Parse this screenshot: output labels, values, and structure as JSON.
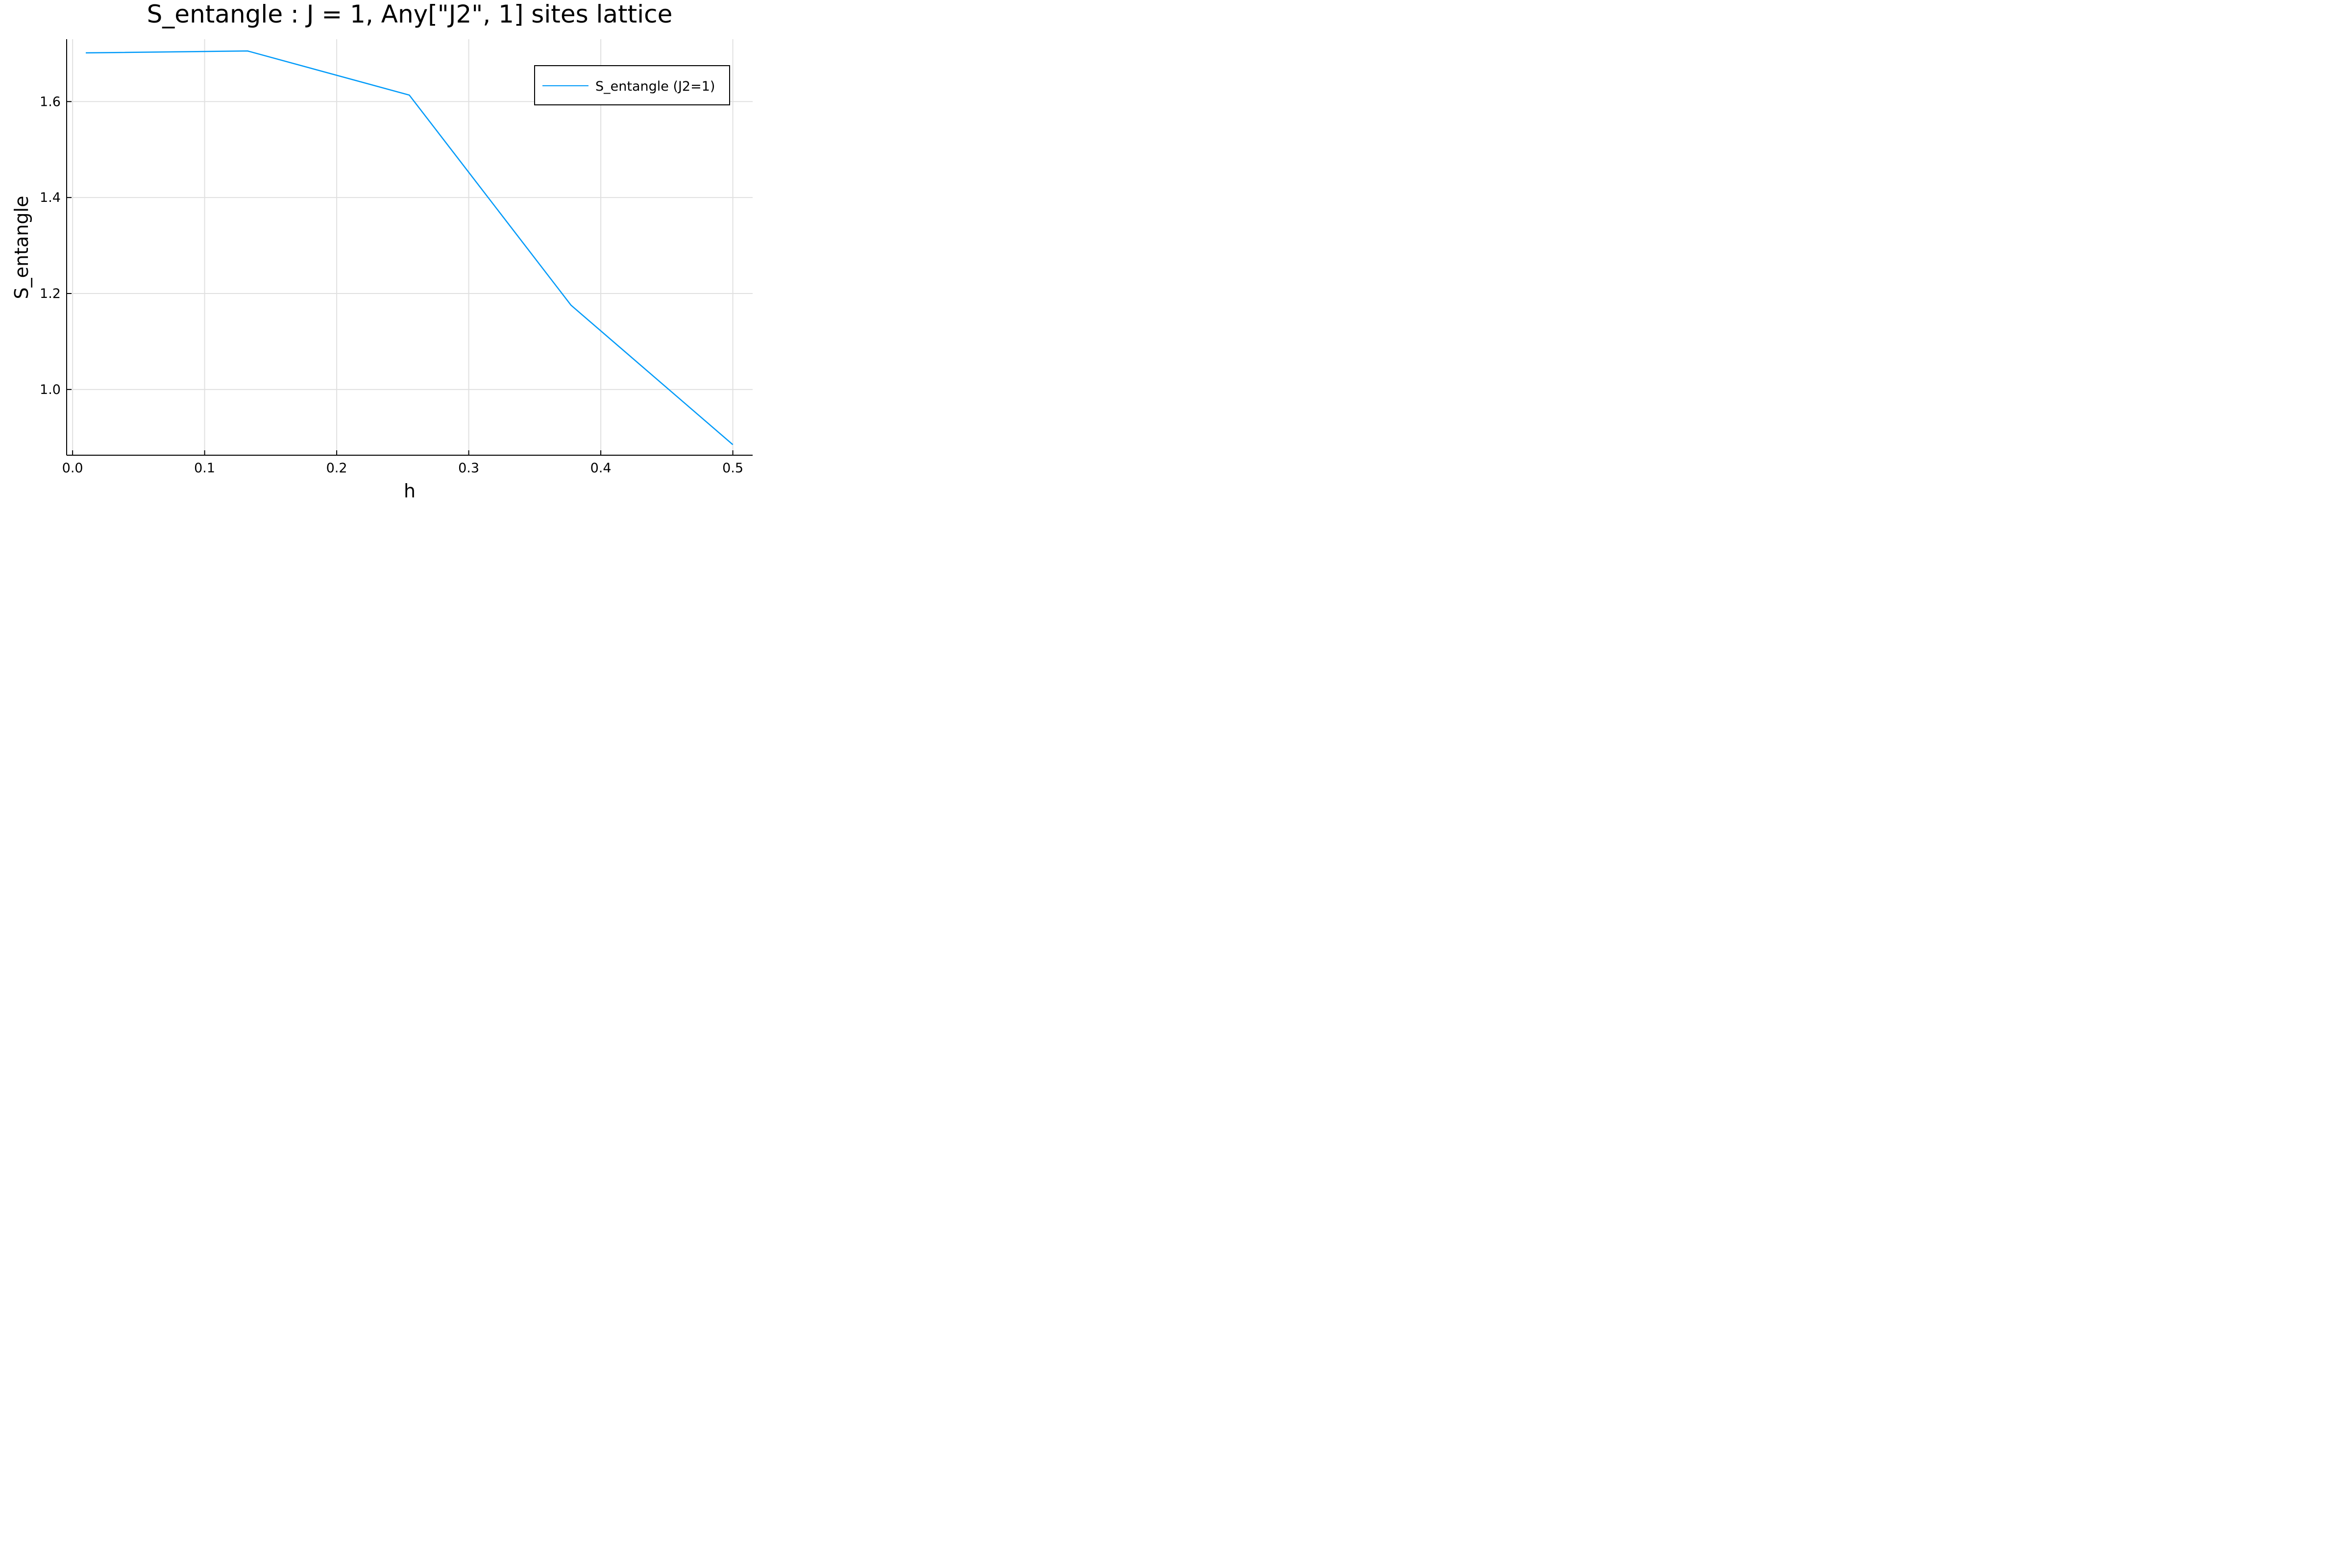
{
  "chart_data": {
    "type": "line",
    "title": "S_entangle : J = 1, Any[\"J2\", 1] sites lattice",
    "xlabel": "h",
    "ylabel": "S_entangle",
    "x": [
      0.01,
      0.1325,
      0.255,
      0.3775,
      0.5
    ],
    "series": [
      {
        "name": "S_entangle (J2=1)",
        "color": "#009af9",
        "values": [
          1.7015,
          1.7055,
          1.6135,
          1.1755,
          0.885
        ]
      }
    ],
    "xlim": [
      -0.0045,
      0.515
    ],
    "ylim": [
      0.863,
      1.73
    ],
    "xticks": [
      0.0,
      0.1,
      0.2,
      0.3,
      0.4,
      0.5
    ],
    "xtick_labels": [
      "0.0",
      "0.1",
      "0.2",
      "0.3",
      "0.4",
      "0.5"
    ],
    "yticks": [
      1.0,
      1.2,
      1.4,
      1.6
    ],
    "ytick_labels": [
      "1.0",
      "1.2",
      "1.4",
      "1.6"
    ],
    "grid": true,
    "legend_position": "top-right"
  }
}
